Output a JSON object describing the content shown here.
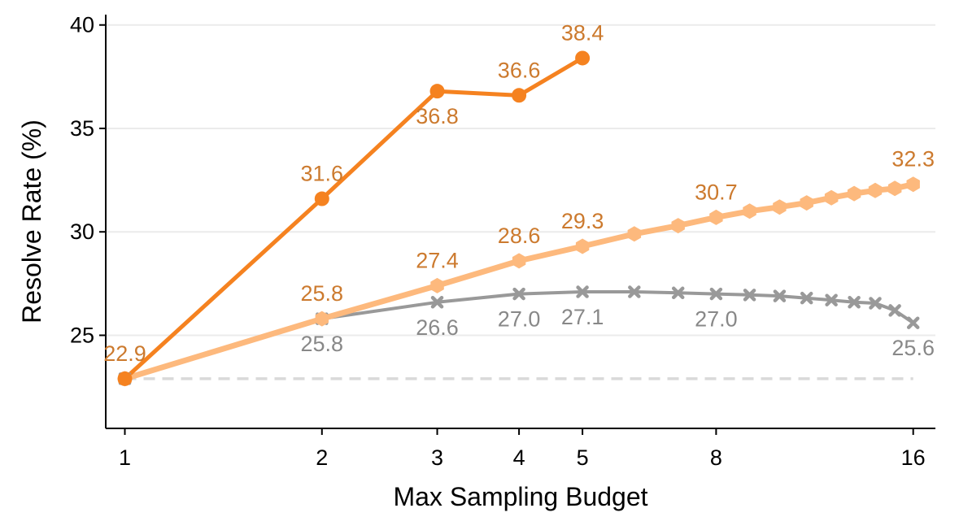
{
  "chart_data": {
    "type": "line",
    "title": "",
    "xlabel": "Max Sampling Budget",
    "ylabel": "Resolve Rate (%)",
    "x_scale": "log",
    "xlim": [
      0.935,
      17.3
    ],
    "ylim": [
      20.5,
      40.5
    ],
    "x_ticks": [
      1,
      2,
      3,
      4,
      5,
      8,
      16
    ],
    "y_ticks": [
      25,
      30,
      35,
      40
    ],
    "grid": "horizontal",
    "legend": "none",
    "baseline": {
      "value": 22.9,
      "x_range": [
        1,
        16
      ],
      "style": "dashed",
      "color": "#d9d9d9"
    },
    "series": [
      {
        "color": "#999999",
        "marker": "x",
        "x": [
          1,
          2,
          3,
          4,
          5,
          6,
          7,
          8,
          9,
          10,
          11,
          12,
          13,
          14,
          15,
          16
        ],
        "values": [
          22.9,
          25.8,
          26.6,
          27.0,
          27.1,
          27.1,
          27.05,
          27.0,
          26.95,
          26.9,
          26.8,
          26.7,
          26.6,
          26.55,
          26.2,
          25.6
        ],
        "labels": [
          {
            "x": 2,
            "text": "25.8",
            "pos": "below"
          },
          {
            "x": 3,
            "text": "26.6",
            "pos": "below"
          },
          {
            "x": 4,
            "text": "27.0",
            "pos": "below"
          },
          {
            "x": 5,
            "text": "27.1",
            "pos": "below"
          },
          {
            "x": 8,
            "text": "27.0",
            "pos": "below"
          },
          {
            "x": 16,
            "text": "25.6",
            "pos": "below"
          }
        ],
        "label_color": "#888888"
      },
      {
        "color": "#fdb97d",
        "marker": "hexagon",
        "x": [
          1,
          2,
          3,
          4,
          5,
          6,
          7,
          8,
          9,
          10,
          11,
          12,
          13,
          14,
          15,
          16
        ],
        "values": [
          22.9,
          25.8,
          27.4,
          28.6,
          29.3,
          29.9,
          30.3,
          30.7,
          31.0,
          31.2,
          31.4,
          31.65,
          31.85,
          32.0,
          32.1,
          32.3
        ],
        "labels": [
          {
            "x": 2,
            "text": "25.8",
            "pos": "above"
          },
          {
            "x": 3,
            "text": "27.4",
            "pos": "above"
          },
          {
            "x": 4,
            "text": "28.6",
            "pos": "above"
          },
          {
            "x": 5,
            "text": "29.3",
            "pos": "above"
          },
          {
            "x": 8,
            "text": "30.7",
            "pos": "above"
          },
          {
            "x": 16,
            "text": "32.3",
            "pos": "above"
          }
        ],
        "label_color": "#cc7a2e"
      },
      {
        "color": "#f58220",
        "marker": "circle",
        "x": [
          1,
          2,
          3,
          4,
          5
        ],
        "values": [
          22.9,
          31.6,
          36.8,
          36.6,
          38.4
        ],
        "labels": [
          {
            "x": 1,
            "text": "22.9",
            "pos": "above"
          },
          {
            "x": 2,
            "text": "31.6",
            "pos": "above"
          },
          {
            "x": 3,
            "text": "36.8",
            "pos": "below"
          },
          {
            "x": 4,
            "text": "36.6",
            "pos": "above"
          },
          {
            "x": 5,
            "text": "38.4",
            "pos": "above"
          }
        ],
        "label_color": "#cc7a2e"
      }
    ]
  }
}
